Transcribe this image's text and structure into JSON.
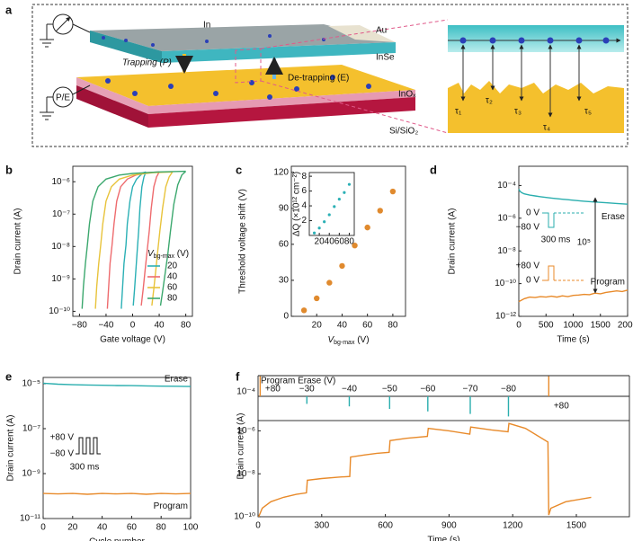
{
  "schematic": {
    "panel": "a",
    "labels": [
      "In",
      "Au",
      "InSe",
      "Trapping (P)",
      "De-trapping (E)",
      "InOₓ",
      "Si/SiO₂",
      "P/E",
      "τ₁",
      "τ₂",
      "τ₃",
      "τ₄",
      "τ₅"
    ]
  },
  "chart_data": [
    {
      "type": "line",
      "panel": "b",
      "log_y": true,
      "xlabel": "Gate voltage (V)",
      "ylabel": "Drain current (A)",
      "xlim": [
        -90,
        90
      ],
      "ylim": [
        7e-11,
        3e-06
      ],
      "xticks": [
        {
          "value": -80,
          "label": "−80"
        },
        {
          "value": -40,
          "label": "−40"
        },
        0,
        40,
        80
      ],
      "yticks": [
        {
          "value": 1e-10,
          "label": "10⁻¹⁰"
        },
        {
          "value": 1e-09,
          "label": "10⁻⁹"
        },
        {
          "value": 1e-08,
          "label": "10⁻⁸"
        },
        {
          "value": 1e-07,
          "label": "10⁻⁷"
        },
        {
          "value": 1e-06,
          "label": "10⁻⁶"
        }
      ],
      "legend": "lower right",
      "legend_title": {
        "text": "V",
        "sub": "bg-max",
        "unit": " (V)"
      },
      "series": [
        {
          "name": "20",
          "color": "#2bb0b5",
          "x": [
            20,
            17,
            14,
            11,
            9,
            7,
            5,
            3,
            1,
            null,
            -17,
            -15,
            -13,
            -10,
            -8,
            -4,
            0,
            6,
            12,
            16,
            20
          ],
          "values": [
            2e-06,
            1.4e-06,
            7e-07,
            1.5e-07,
            3e-08,
            8e-09,
            2e-09,
            5e-10,
            1.5e-10,
            null,
            1.2e-10,
            6e-10,
            3e-09,
            1.1e-08,
            5e-08,
            2.5e-07,
            7e-07,
            1.2e-06,
            1.6e-06,
            1.9e-06,
            2e-06
          ]
        },
        {
          "name": "40",
          "color": "#ee6b6e",
          "x": [
            40,
            36,
            32,
            28,
            25,
            22,
            19,
            16,
            13,
            null,
            -38,
            -36,
            -34,
            -31,
            -28,
            -24,
            -18,
            -8,
            5,
            20,
            40
          ],
          "values": [
            2e-06,
            1.4e-06,
            7e-07,
            1.5e-07,
            3e-08,
            8e-09,
            2e-09,
            5e-10,
            1.5e-10,
            null,
            1.2e-10,
            6e-10,
            3e-09,
            1.1e-08,
            5e-08,
            2.5e-07,
            7e-07,
            1.2e-06,
            1.6e-06,
            1.9e-06,
            2e-06
          ]
        },
        {
          "name": "60",
          "color": "#e8c33b",
          "x": [
            60,
            55,
            50,
            45,
            41,
            38,
            35,
            32,
            29,
            null,
            -56,
            -54,
            -51,
            -48,
            -45,
            -40,
            -32,
            -20,
            0,
            30,
            60
          ],
          "values": [
            2e-06,
            1.4e-06,
            7e-07,
            1.5e-07,
            3e-08,
            8e-09,
            2e-09,
            5e-10,
            1.5e-10,
            null,
            1.2e-10,
            6e-10,
            3e-09,
            1.1e-08,
            5e-08,
            2.5e-07,
            7e-07,
            1.2e-06,
            1.6e-06,
            1.9e-06,
            2e-06
          ]
        },
        {
          "name": "80",
          "color": "#3ca86e",
          "x": [
            80,
            74,
            68,
            62,
            57,
            53,
            49,
            45,
            42,
            null,
            -76,
            -74,
            -71,
            -68,
            -65,
            -60,
            -52,
            -40,
            -20,
            0,
            40,
            80
          ],
          "values": [
            2.1e-06,
            1.6e-06,
            8e-07,
            2e-07,
            3e-08,
            6e-09,
            1.5e-09,
            4e-10,
            1.5e-10,
            null,
            1.2e-10,
            6e-10,
            3e-09,
            1.2e-08,
            5e-08,
            2.5e-07,
            7e-07,
            1.2e-06,
            1.6e-06,
            1.8e-06,
            2e-06,
            2.1e-06
          ]
        }
      ]
    },
    {
      "type": "scatter",
      "panel": "c",
      "xlabel": {
        "text": "V",
        "sub": "bg-max",
        "unit": " (V)"
      },
      "ylabel": "Threshold voltage shift (V)",
      "xlim": [
        0,
        90
      ],
      "ylim": [
        0,
        125
      ],
      "xticks": [
        20,
        40,
        60,
        80
      ],
      "yticks": [
        0,
        30,
        60,
        90,
        120
      ],
      "color": "#e08a2e",
      "x": [
        10,
        20,
        30,
        40,
        50,
        60,
        70,
        80
      ],
      "values": [
        5,
        15,
        28,
        42,
        59,
        74,
        88,
        104
      ]
    },
    {
      "type": "scatter",
      "ylabel": "ΔQ (×10¹² cm⁻²)",
      "xlim": [
        0,
        90
      ],
      "ylim": [
        0,
        8.5
      ],
      "xticks": [
        20,
        40,
        60,
        80
      ],
      "yticks": [
        2,
        4,
        6,
        8
      ],
      "color": "#2bb0b5",
      "x": [
        10,
        20,
        30,
        40,
        50,
        60,
        70,
        80
      ],
      "values": [
        0.33,
        1,
        1.85,
        2.8,
        3.9,
        4.9,
        5.8,
        6.9
      ]
    },
    {
      "type": "line",
      "panel": "d",
      "log_y": true,
      "xlabel": "Time (s)",
      "ylabel": "Drain current (A)",
      "legend": "inline",
      "xlim": [
        0,
        2000
      ],
      "ylim": [
        1e-12,
        0.0015
      ],
      "xticks": [
        0,
        500,
        1000,
        1500,
        2000
      ],
      "yticks": [
        {
          "value": 1e-12,
          "label": "10⁻¹²"
        },
        {
          "value": 1e-10,
          "label": "10⁻¹⁰"
        },
        {
          "value": 1e-08,
          "label": "10⁻⁸"
        },
        {
          "value": 1e-06,
          "label": "10⁻⁶"
        },
        {
          "value": 0.0001,
          "label": "10⁻⁴"
        }
      ],
      "annotations": [
        "10⁵",
        "0 V",
        "−80 V",
        "300 ms",
        "+80 V",
        "0 V"
      ],
      "series": [
        {
          "name": "Erase",
          "color": "#2aaeae",
          "x": [
            0,
            20,
            50,
            100,
            200,
            300,
            400,
            500,
            600,
            700,
            800,
            900,
            1000,
            1200,
            1400,
            1600,
            1800,
            2000
          ],
          "values": [
            6e-05,
            4.5e-05,
            3.7e-05,
            3.1e-05,
            2.6e-05,
            2.3e-05,
            2.05e-05,
            1.85e-05,
            1.7e-05,
            1.55e-05,
            1.45e-05,
            1.35e-05,
            1.25e-05,
            1.1e-05,
            9.8e-06,
            8.8e-06,
            8e-06,
            7.2e-06
          ]
        },
        {
          "name": "Program",
          "color": "#e88a2a",
          "x": [
            0,
            100,
            200,
            300,
            400,
            500,
            600,
            700,
            800,
            900,
            1000,
            1100,
            1200,
            1300,
            1400,
            1500,
            1600,
            1700,
            1800,
            1900,
            2000
          ],
          "values": [
            8e-12,
            1.2e-11,
            1.5e-11,
            1.4e-11,
            1.6e-11,
            1.5e-11,
            1.7e-11,
            1.5e-11,
            1.8e-11,
            1.6e-11,
            1.9e-11,
            2e-11,
            2.2e-11,
            2.1e-11,
            2.6e-11,
            2.4e-11,
            2.9e-11,
            3.2e-11,
            3.6e-11,
            3.3e-11,
            4e-11
          ]
        }
      ]
    },
    {
      "type": "line",
      "panel": "e",
      "log_y": true,
      "xlabel": "Cycle number",
      "ylabel": "Drain current (A)",
      "legend": "inline",
      "xlim": [
        0,
        100
      ],
      "ylim": [
        1e-11,
        1.9e-05
      ],
      "xticks": [
        0,
        20,
        40,
        60,
        80,
        100
      ],
      "yticks": [
        {
          "value": 1e-11,
          "label": "10⁻¹¹"
        },
        {
          "value": 1e-09,
          "label": "10⁻⁹"
        },
        {
          "value": 1e-07,
          "label": "10⁻⁷"
        },
        {
          "value": 1e-05,
          "label": "10⁻⁵"
        }
      ],
      "annotations": [
        "+80 V",
        "−80 V",
        "300 ms"
      ],
      "series": [
        {
          "name": "Erase",
          "color": "#2aaeae",
          "x": [
            0,
            10,
            20,
            30,
            40,
            50,
            60,
            70,
            80,
            90,
            100
          ],
          "values": [
            1.05e-05,
            9.5e-06,
            9e-06,
            8.8e-06,
            8.5e-06,
            8.3e-06,
            8.2e-06,
            8e-06,
            7.8e-06,
            7.7e-06,
            7.5e-06
          ]
        },
        {
          "name": "Program",
          "color": "#e88a2a",
          "x": [
            0,
            10,
            20,
            30,
            40,
            50,
            60,
            70,
            80,
            90,
            100
          ],
          "values": [
            1.3e-10,
            1.25e-10,
            1.3e-10,
            1.2e-10,
            1.3e-10,
            1.25e-10,
            1.3e-10,
            1.2e-10,
            1.3e-10,
            1.25e-10,
            1.3e-10
          ]
        }
      ]
    },
    {
      "type": "line",
      "panel": "f",
      "log_y": true,
      "xlabel": "Time (s)",
      "ylabel": "Drain current (A)",
      "color": "#e88a2a",
      "xlim": [
        0,
        1750
      ],
      "ylim": [
        1e-10,
        3e-06
      ],
      "xticks": [
        0,
        300,
        600,
        900,
        1200,
        1500
      ],
      "yticks": [
        {
          "value": 1e-10,
          "label": "10⁻¹⁰"
        },
        {
          "value": 1e-08,
          "label": "10⁻⁸"
        },
        {
          "value": 1e-06,
          "label": "10⁻⁶"
        }
      ],
      "x": [
        3,
        20,
        60,
        120,
        180,
        228,
        232,
        300,
        380,
        432,
        436,
        500,
        560,
        618,
        622,
        700,
        798,
        802,
        900,
        998,
        1002,
        1100,
        1178,
        1182,
        1260,
        1366,
        1370,
        1380,
        1450,
        1570
      ],
      "values": [
        1e-10,
        2.5e-10,
        5e-10,
        8e-10,
        1.1e-09,
        1.3e-09,
        5e-09,
        6e-09,
        7e-09,
        7.5e-09,
        6e-08,
        7.5e-08,
        9e-08,
        1e-07,
        3.5e-07,
        4.5e-07,
        5.5e-07,
        1.3e-06,
        1e-06,
        7e-07,
        1.5e-06,
        1.1e-06,
        9e-07,
        2.2e-06,
        1.3e-06,
        3e-07,
        1.2e-10,
        2.5e-10,
        5e-10,
        8e-10
      ],
      "pulses": {
        "label": "Program Erase (V)",
        "strip_tick_label": "10⁻⁴",
        "x": [
          10,
          230,
          430,
          620,
          800,
          1000,
          1180,
          1370
        ],
        "values": [
          80,
          -30,
          -40,
          -50,
          -60,
          -70,
          -80,
          80
        ],
        "value_labels": [
          "+80",
          "−30",
          "−40",
          "−50",
          "−60",
          "−70",
          "−80",
          "+80"
        ],
        "colors": [
          "#e88a2a",
          "#2aaeae",
          "#2aaeae",
          "#2aaeae",
          "#2aaeae",
          "#2aaeae",
          "#2aaeae",
          "#e88a2a"
        ]
      }
    }
  ]
}
